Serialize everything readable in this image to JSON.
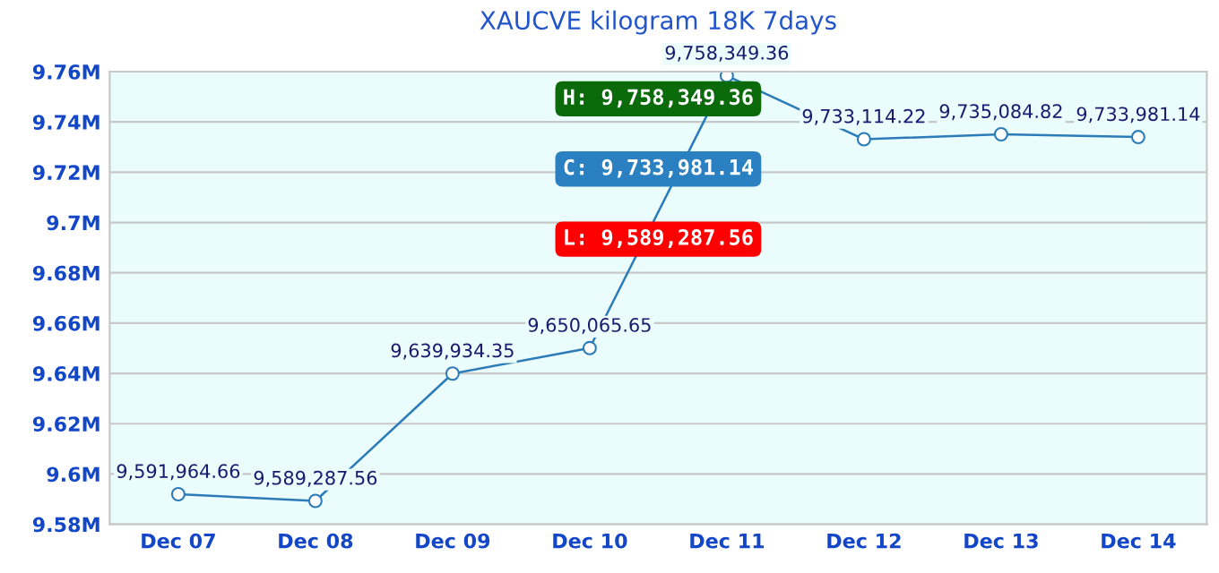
{
  "chart_data": {
    "type": "line",
    "title": "XAUCVE kilogram 18K 7days",
    "categories": [
      "Dec 07",
      "Dec 08",
      "Dec 09",
      "Dec 10",
      "Dec 11",
      "Dec 12",
      "Dec 13",
      "Dec 14"
    ],
    "series": [
      {
        "color": "#2b7bb9",
        "values": [
          9591964.66,
          9589287.56,
          9639934.35,
          9650065.65,
          9758349.36,
          9733114.22,
          9735084.82,
          9733981.14
        ],
        "value_labels": [
          "9,591,964.66",
          "9,589,287.56",
          "9,639,934.35",
          "9,650,065.65",
          "9,758,349.36",
          "9,733,114.22",
          "9,735,084.82",
          "9,733,981.14"
        ]
      }
    ],
    "ylim": [
      9580000,
      9760000
    ],
    "yticks": [
      {
        "value": 9580000,
        "label": "9.58M"
      },
      {
        "value": 9600000,
        "label": "9.6M"
      },
      {
        "value": 9620000,
        "label": "9.62M"
      },
      {
        "value": 9640000,
        "label": "9.64M"
      },
      {
        "value": 9660000,
        "label": "9.66M"
      },
      {
        "value": 9680000,
        "label": "9.68M"
      },
      {
        "value": 9700000,
        "label": "9.7M"
      },
      {
        "value": 9720000,
        "label": "9.72M"
      },
      {
        "value": 9740000,
        "label": "9.74M"
      },
      {
        "value": 9760000,
        "label": "9.76M"
      }
    ],
    "grid": "y",
    "marker": "circle",
    "line_style": "solid",
    "legend": false,
    "annotations": [
      "H: 9,758,349.36",
      "C: 9,733,981.14",
      "L: 9,589,287.56"
    ]
  }
}
